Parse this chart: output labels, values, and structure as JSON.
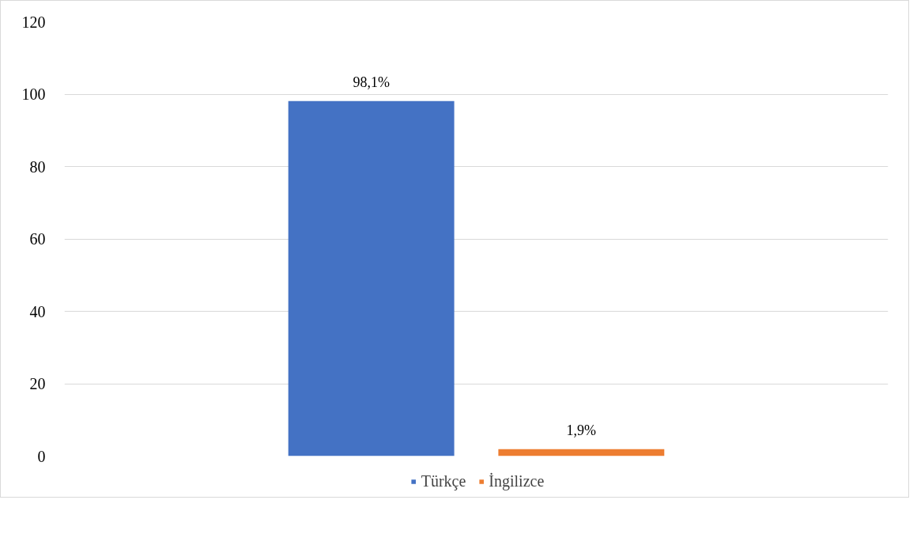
{
  "chart_data": {
    "type": "bar",
    "categories": [
      null
    ],
    "series": [
      {
        "name": "Türkçe",
        "color": "#4472c4",
        "values": [
          98.1
        ],
        "value_labels": [
          "98,1%"
        ]
      },
      {
        "name": "İngilizce",
        "color": "#ed7d31",
        "values": [
          1.9
        ],
        "value_labels": [
          "1,9%"
        ]
      }
    ],
    "ylim": [
      0,
      120
    ],
    "yticks": [
      0,
      20,
      40,
      60,
      80,
      100,
      120
    ],
    "grid": "y",
    "legend": "bottom",
    "tick_labels": "y"
  }
}
